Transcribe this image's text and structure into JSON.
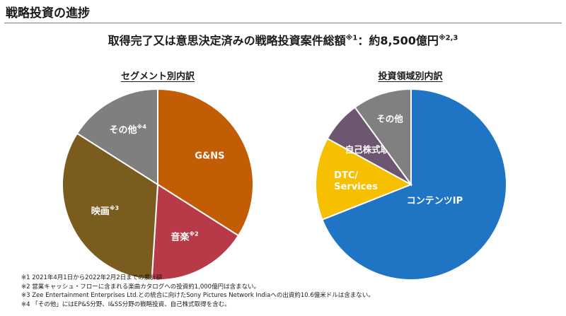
{
  "slide_title": "戦略投資の進捗",
  "headline": {
    "text": "取得完了又は意思決定済みの戦略投資案件総額",
    "mark1": "※1",
    "amount_text": "：約8,500億円",
    "mark2": "※2,3"
  },
  "colors": {
    "gns": "#c25c05",
    "music": "#b83a49",
    "film": "#7a5c1e",
    "other_left": "#7f7f7f",
    "content_ip": "#1f74c4",
    "dtc": "#f6c000",
    "buyback": "#6d5670",
    "other_right": "#808080"
  },
  "chart_data": [
    {
      "type": "pie",
      "title": "セグメント別内訳",
      "slices": [
        {
          "label": "G&NS",
          "mark": "",
          "value": 34,
          "color": "#c25c05"
        },
        {
          "label": "音楽",
          "mark": "※2",
          "value": 17,
          "color": "#b83a49"
        },
        {
          "label": "映画",
          "mark": "※3",
          "value": 33,
          "color": "#7a5c1e"
        },
        {
          "label": "その他",
          "mark": "※4",
          "value": 16,
          "color": "#7f7f7f"
        }
      ]
    },
    {
      "type": "pie",
      "title": "投資領域別内訳",
      "slices": [
        {
          "label": "コンテンツIP",
          "mark": "",
          "value": 69,
          "color": "#1f74c4"
        },
        {
          "label": "DTC/\nServices",
          "mark": "",
          "value": 14,
          "color": "#f6c000"
        },
        {
          "label": "自己株式取得",
          "mark": "",
          "value": 7,
          "color": "#6d5670"
        },
        {
          "label": "その他",
          "mark": "",
          "value": 10,
          "color": "#808080"
        }
      ]
    }
  ],
  "footnotes": [
    "※1 2021年4月1日から2022年2月2日までの累計額",
    "※2 営業キャッシュ・フローに含まれる楽曲カタログへの投資約1,000億円は含まない。",
    "※3 Zee Entertainment Enterprises Ltd.との統合に向けたSony Pictures Network Indiaへの出資約10.6億米ドルは含まない。",
    "※4 「その他」にはEP&S分野、I&SS分野の戦略投資、自己株式取得を含む。"
  ]
}
